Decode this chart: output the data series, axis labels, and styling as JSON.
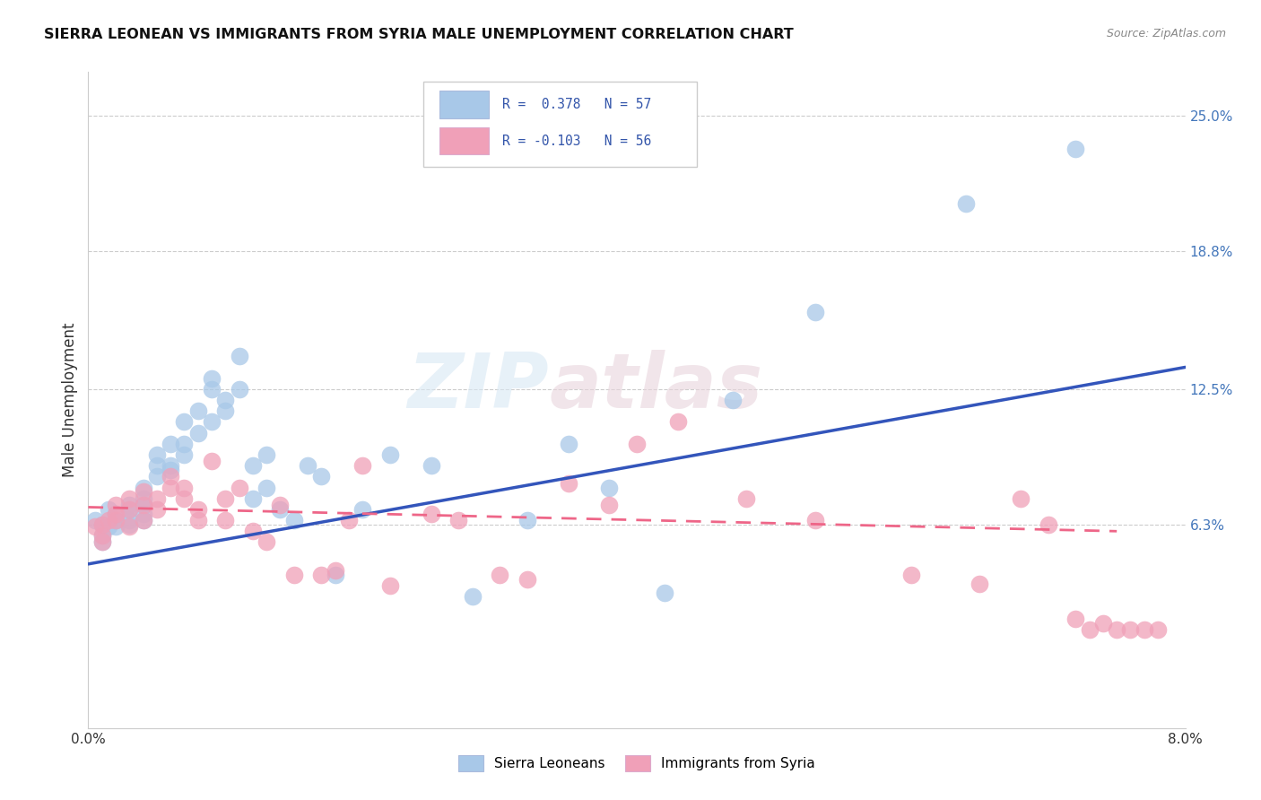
{
  "title": "SIERRA LEONEAN VS IMMIGRANTS FROM SYRIA MALE UNEMPLOYMENT CORRELATION CHART",
  "source": "Source: ZipAtlas.com",
  "ylabel": "Male Unemployment",
  "xlim": [
    0.0,
    0.08
  ],
  "ylim": [
    -0.03,
    0.27
  ],
  "xtick_positions": [
    0.0,
    0.02,
    0.04,
    0.06,
    0.08
  ],
  "xticklabels": [
    "0.0%",
    "",
    "",
    "",
    "8.0%"
  ],
  "yticks_right": [
    0.063,
    0.125,
    0.188,
    0.25
  ],
  "yticklabels_right": [
    "6.3%",
    "12.5%",
    "18.8%",
    "25.0%"
  ],
  "watermark_line1": "ZIP",
  "watermark_line2": "atlas",
  "legend_text1": "R =  0.378   N = 57",
  "legend_text2": "R = -0.103   N = 56",
  "legend_label1": "Sierra Leoneans",
  "legend_label2": "Immigrants from Syria",
  "color_blue": "#A8C8E8",
  "color_pink": "#F0A0B8",
  "color_blue_line": "#3355BB",
  "color_pink_line": "#EE6688",
  "blue_scatter_x": [
    0.0005,
    0.001,
    0.001,
    0.001,
    0.0015,
    0.0015,
    0.002,
    0.002,
    0.002,
    0.003,
    0.003,
    0.003,
    0.003,
    0.004,
    0.004,
    0.004,
    0.004,
    0.004,
    0.005,
    0.005,
    0.005,
    0.006,
    0.006,
    0.006,
    0.007,
    0.007,
    0.007,
    0.008,
    0.008,
    0.009,
    0.009,
    0.009,
    0.01,
    0.01,
    0.011,
    0.011,
    0.012,
    0.012,
    0.013,
    0.013,
    0.014,
    0.015,
    0.016,
    0.017,
    0.018,
    0.02,
    0.022,
    0.025,
    0.028,
    0.032,
    0.035,
    0.038,
    0.042,
    0.047,
    0.053,
    0.064,
    0.072
  ],
  "blue_scatter_y": [
    0.065,
    0.063,
    0.058,
    0.055,
    0.062,
    0.07,
    0.062,
    0.068,
    0.065,
    0.065,
    0.07,
    0.063,
    0.072,
    0.068,
    0.072,
    0.075,
    0.08,
    0.065,
    0.085,
    0.09,
    0.095,
    0.088,
    0.09,
    0.1,
    0.095,
    0.1,
    0.11,
    0.105,
    0.115,
    0.11,
    0.125,
    0.13,
    0.12,
    0.115,
    0.125,
    0.14,
    0.09,
    0.075,
    0.095,
    0.08,
    0.07,
    0.065,
    0.09,
    0.085,
    0.04,
    0.07,
    0.095,
    0.09,
    0.03,
    0.065,
    0.1,
    0.08,
    0.032,
    0.12,
    0.16,
    0.21,
    0.235
  ],
  "pink_scatter_x": [
    0.0005,
    0.001,
    0.001,
    0.001,
    0.0015,
    0.002,
    0.002,
    0.002,
    0.003,
    0.003,
    0.003,
    0.004,
    0.004,
    0.004,
    0.005,
    0.005,
    0.006,
    0.006,
    0.007,
    0.007,
    0.008,
    0.008,
    0.009,
    0.01,
    0.01,
    0.011,
    0.012,
    0.013,
    0.014,
    0.015,
    0.017,
    0.018,
    0.019,
    0.02,
    0.022,
    0.025,
    0.027,
    0.03,
    0.032,
    0.035,
    0.038,
    0.04,
    0.043,
    0.048,
    0.053,
    0.06,
    0.065,
    0.068,
    0.07,
    0.072,
    0.073,
    0.074,
    0.075,
    0.076,
    0.077,
    0.078
  ],
  "pink_scatter_y": [
    0.062,
    0.058,
    0.063,
    0.055,
    0.065,
    0.065,
    0.068,
    0.072,
    0.062,
    0.07,
    0.075,
    0.065,
    0.072,
    0.078,
    0.07,
    0.075,
    0.08,
    0.085,
    0.075,
    0.08,
    0.065,
    0.07,
    0.092,
    0.065,
    0.075,
    0.08,
    0.06,
    0.055,
    0.072,
    0.04,
    0.04,
    0.042,
    0.065,
    0.09,
    0.035,
    0.068,
    0.065,
    0.04,
    0.038,
    0.082,
    0.072,
    0.1,
    0.11,
    0.075,
    0.065,
    0.04,
    0.036,
    0.075,
    0.063,
    0.02,
    0.015,
    0.018,
    0.015,
    0.015,
    0.015,
    0.015
  ],
  "blue_line_x": [
    0.0,
    0.08
  ],
  "blue_line_y": [
    0.045,
    0.135
  ],
  "pink_line_x": [
    0.0,
    0.075
  ],
  "pink_line_y": [
    0.071,
    0.06
  ],
  "background_color": "#FFFFFF",
  "grid_color": "#CCCCCC"
}
